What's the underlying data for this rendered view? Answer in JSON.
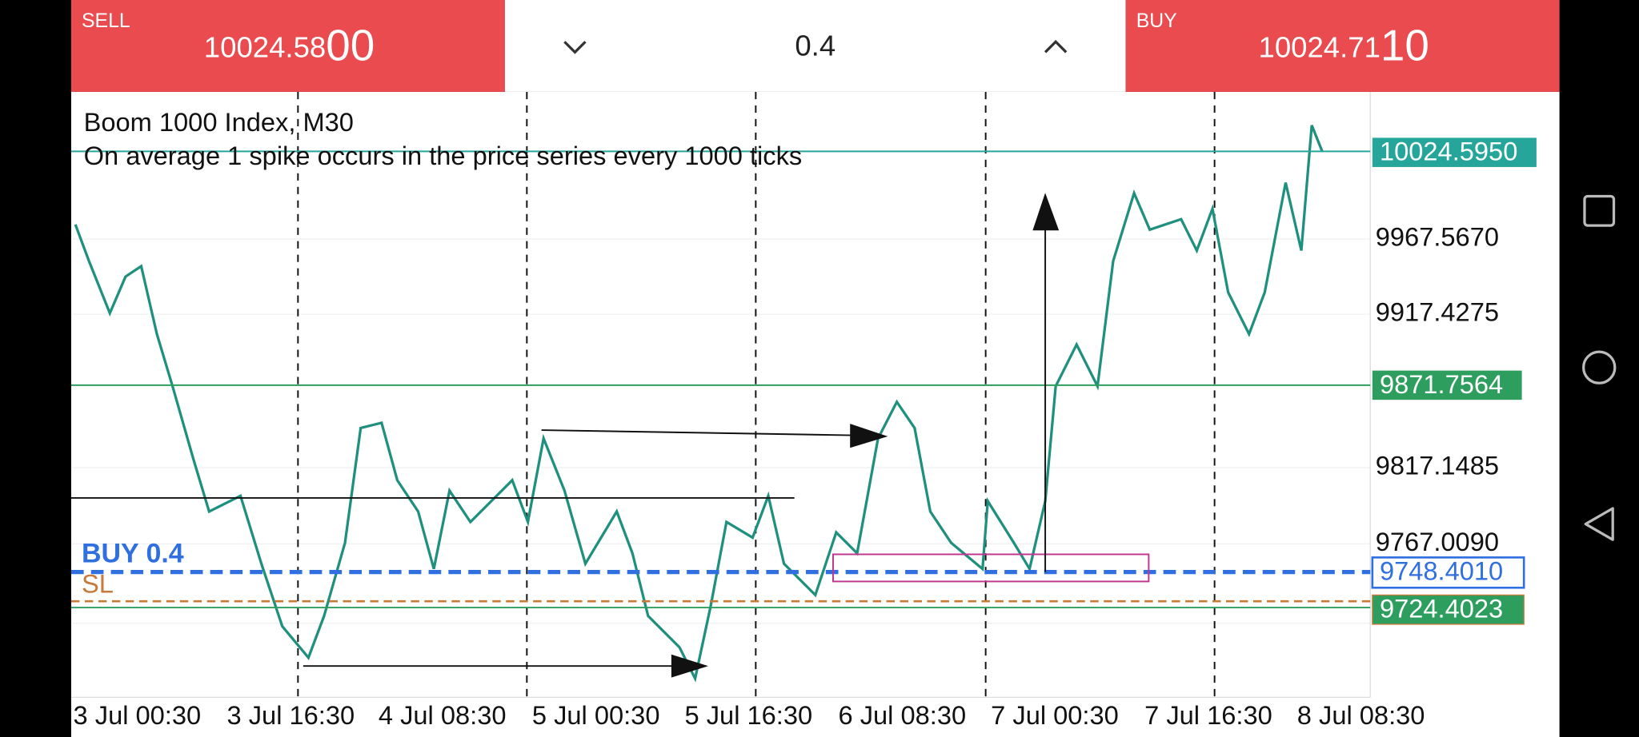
{
  "sell": {
    "label": "SELL",
    "price_main": "10024.58",
    "price_big": "00"
  },
  "volume": "0.4",
  "buy": {
    "label": "BUY",
    "price_main": "10024.71",
    "price_big": "10"
  },
  "chart": {
    "title": "Boom 1000 Index, M30",
    "subtitle": "On average 1 spike occurs in the price series every 1000 ticks",
    "price_axis": [
      "9967.5670",
      "9917.4275",
      "9817.1485",
      "9767.0090"
    ],
    "price_tags": [
      "10024.5950",
      "9871.7564",
      "9748.4010",
      "9724.4023"
    ],
    "order_label": "BUY 0.4",
    "sl_label": "SL",
    "time_axis": [
      "3 Jul 00:30",
      "3 Jul 16:30",
      "4 Jul 08:30",
      "5 Jul 00:30",
      "5 Jul 16:30",
      "6 Jul 08:30",
      "7 Jul 00:30",
      "7 Jul 16:30",
      "8 Jul 08:30"
    ]
  }
}
